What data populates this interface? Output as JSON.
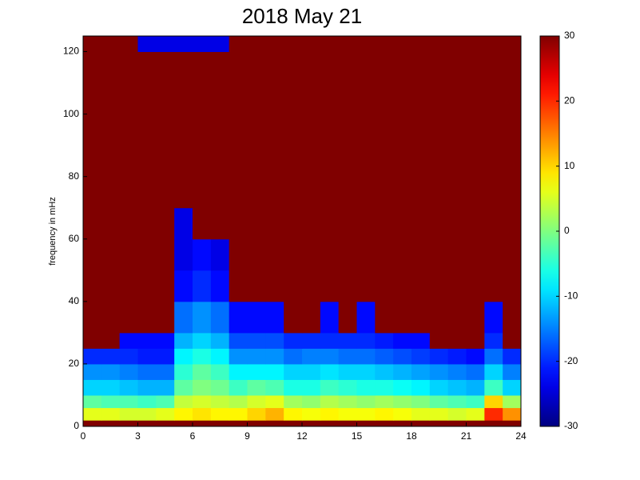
{
  "chart_data": {
    "type": "heatmap",
    "title": "2018 May 21",
    "ylabel": "frequency in mHz",
    "colormap": "jet",
    "xbins": [
      0,
      1,
      2,
      3,
      4,
      5,
      6,
      7,
      8,
      9,
      10,
      11,
      12,
      13,
      14,
      15,
      16,
      17,
      18,
      19,
      20,
      21,
      22,
      23,
      24
    ],
    "ybins": [
      0,
      2,
      6,
      10,
      15,
      20,
      25,
      30,
      40,
      50,
      60,
      70,
      80,
      100,
      120,
      125
    ],
    "xlim": [
      0,
      24
    ],
    "xticks": [
      0,
      3,
      6,
      9,
      12,
      15,
      18,
      21,
      24
    ],
    "ylim": [
      0,
      125
    ],
    "yticks": [
      0,
      20,
      40,
      60,
      80,
      100,
      120
    ],
    "clim": [
      -30,
      30
    ],
    "cticks": [
      -30,
      -20,
      -10,
      0,
      10,
      20,
      30
    ],
    "values": [
      [
        30,
        30,
        30,
        30,
        30,
        30,
        30,
        30,
        30,
        30,
        30,
        30,
        30,
        30,
        30,
        30,
        30,
        30,
        30,
        30,
        30,
        30,
        30,
        30
      ],
      [
        6,
        6,
        5,
        5,
        6,
        8,
        9,
        8,
        8,
        10,
        12,
        8,
        7,
        8,
        7,
        7,
        8,
        7,
        6,
        6,
        5,
        6,
        20,
        14
      ],
      [
        -2,
        -3,
        -3,
        -4,
        -3,
        4,
        5,
        4,
        3,
        5,
        6,
        2,
        1,
        3,
        2,
        1,
        2,
        1,
        0,
        -2,
        -3,
        -4,
        10,
        2
      ],
      [
        -10,
        -10,
        -11,
        -12,
        -12,
        -2,
        0,
        -1,
        -4,
        -2,
        -3,
        -6,
        -6,
        -4,
        -5,
        -6,
        -6,
        -7,
        -8,
        -10,
        -11,
        -12,
        -4,
        -10
      ],
      [
        -14,
        -14,
        -15,
        -16,
        -16,
        -5,
        -2,
        -4,
        -8,
        -8,
        -8,
        -10,
        -10,
        -9,
        -10,
        -10,
        -11,
        -12,
        -13,
        -14,
        -15,
        -16,
        -10,
        -15
      ],
      [
        -20,
        -20,
        -20,
        -21,
        -21,
        -8,
        -6,
        -8,
        -14,
        -14,
        -14,
        -16,
        -15,
        -15,
        -16,
        -16,
        -17,
        -18,
        -19,
        -20,
        -21,
        -22,
        -16,
        -20
      ],
      [
        30,
        30,
        -22,
        -22,
        -22,
        -12,
        -10,
        -12,
        -18,
        -18,
        -18,
        -20,
        -20,
        -20,
        -20,
        -20,
        -21,
        -22,
        -22,
        30,
        30,
        30,
        -20,
        30
      ],
      [
        30,
        30,
        30,
        30,
        30,
        -16,
        -14,
        -16,
        -22,
        -22,
        -22,
        30,
        30,
        -22,
        30,
        -22,
        30,
        30,
        30,
        30,
        30,
        30,
        -22,
        30
      ],
      [
        30,
        30,
        30,
        30,
        30,
        -22,
        -20,
        -22,
        30,
        30,
        30,
        30,
        30,
        30,
        30,
        30,
        30,
        30,
        30,
        30,
        30,
        30,
        30,
        30
      ],
      [
        30,
        30,
        30,
        30,
        30,
        -24,
        -22,
        -24,
        30,
        30,
        30,
        30,
        30,
        30,
        30,
        30,
        30,
        30,
        30,
        30,
        30,
        30,
        30,
        30
      ],
      [
        30,
        30,
        30,
        30,
        30,
        -24,
        30,
        30,
        30,
        30,
        30,
        30,
        30,
        30,
        30,
        30,
        30,
        30,
        30,
        30,
        30,
        30,
        30,
        30
      ],
      [
        30,
        30,
        30,
        30,
        30,
        30,
        30,
        30,
        30,
        30,
        30,
        30,
        30,
        30,
        30,
        30,
        30,
        30,
        30,
        30,
        30,
        30,
        30,
        30
      ],
      [
        30,
        30,
        30,
        30,
        30,
        30,
        30,
        30,
        30,
        30,
        30,
        30,
        30,
        30,
        30,
        30,
        30,
        30,
        30,
        30,
        30,
        30,
        30,
        30
      ],
      [
        30,
        30,
        30,
        30,
        30,
        30,
        30,
        30,
        30,
        30,
        30,
        30,
        30,
        30,
        30,
        30,
        30,
        30,
        30,
        30,
        30,
        30,
        30,
        30
      ],
      [
        30,
        30,
        30,
        -24,
        -24,
        -24,
        -24,
        -24,
        30,
        30,
        30,
        30,
        30,
        30,
        30,
        30,
        30,
        30,
        30,
        30,
        30,
        30,
        30,
        30
      ]
    ]
  }
}
